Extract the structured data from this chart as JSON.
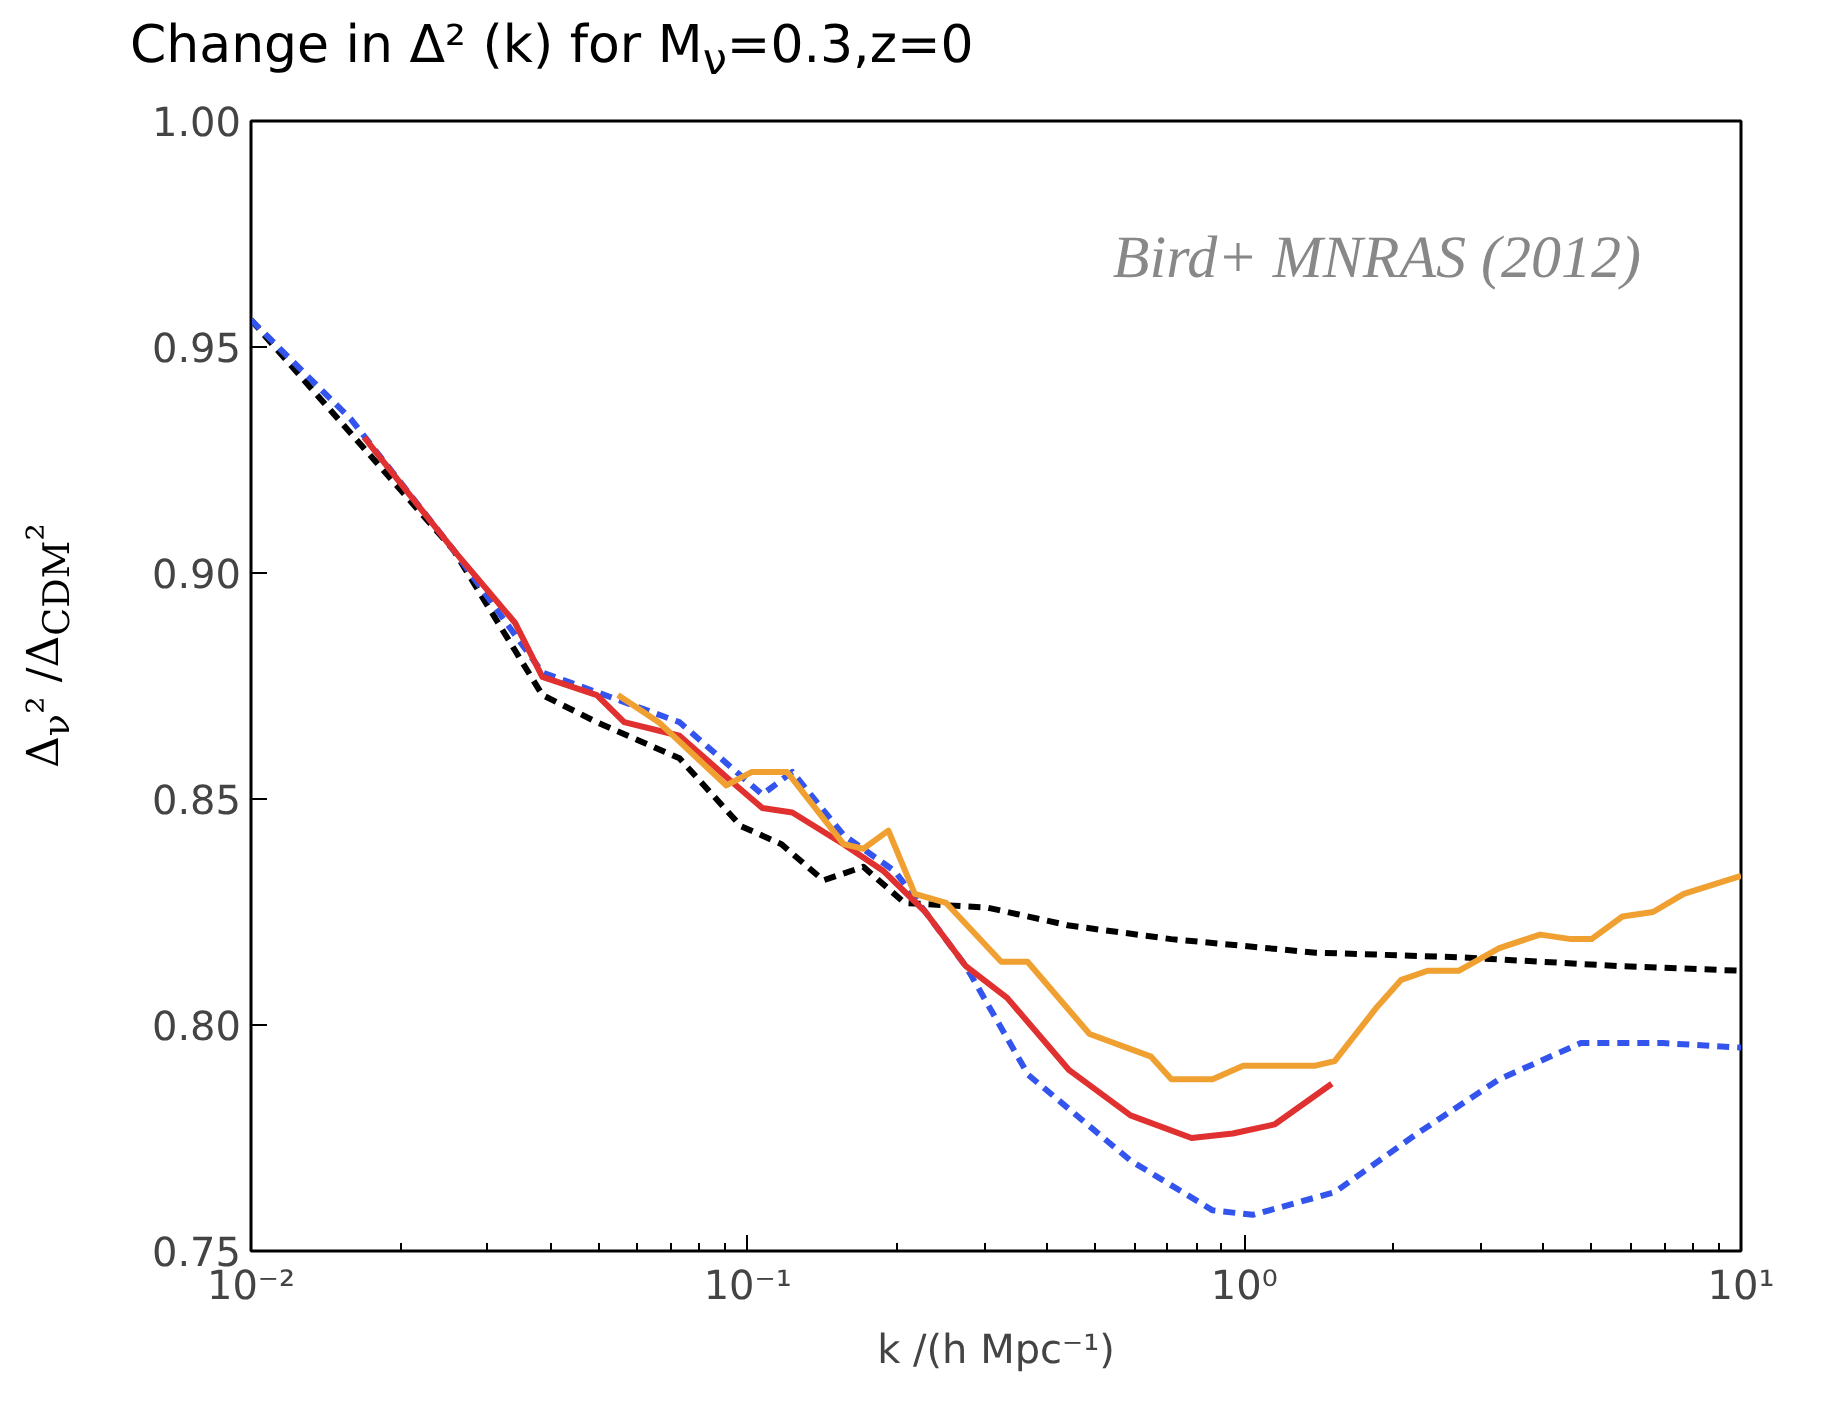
{
  "chart_data": {
    "type": "line",
    "title": "Change in Δ² (k) for M$_{ν}$=0.3,z=0",
    "xlabel": "k /(h Mpc⁻¹)",
    "ylabel": "Δ$_{ν}$² /Δ$_{CDM}$²",
    "log": "x",
    "grid": false,
    "xlim": [
      0.01,
      10
    ],
    "xticks": [
      {
        "value": 0.01,
        "label": "10⁻²"
      },
      {
        "value": 0.1,
        "label": "10⁻¹"
      },
      {
        "value": 1,
        "label": "10⁰"
      },
      {
        "value": 10,
        "label": "10¹"
      }
    ],
    "ylim": [
      0.75,
      1.0
    ],
    "yticks": [
      {
        "value": 0.75,
        "label": "0.75"
      },
      {
        "value": 0.8,
        "label": "0.80"
      },
      {
        "value": 0.85,
        "label": "0.85"
      },
      {
        "value": 0.9,
        "label": "0.90"
      },
      {
        "value": 0.95,
        "label": "0.95"
      },
      {
        "value": 1.0,
        "label": "1.00"
      }
    ],
    "annotations": [
      "Bird+ MNRAS (2012)"
    ],
    "series": [
      {
        "color": "#000000",
        "line_style": "dashed",
        "x": [
          0.01,
          0.0256,
          0.0386,
          0.0497,
          0.0729,
          0.0969,
          0.117,
          0.142,
          0.171,
          0.207,
          0.303,
          0.444,
          0.713,
          1.39,
          2.7,
          5.77,
          10
        ],
        "values": [
          0.956,
          0.905,
          0.873,
          0.867,
          0.859,
          0.844,
          0.84,
          0.832,
          0.835,
          0.827,
          0.826,
          0.822,
          0.819,
          0.816,
          0.815,
          0.813,
          0.812
        ]
      },
      {
        "color": "#3355ee",
        "line_style": "dashed",
        "x": [
          0.01,
          0.0159,
          0.0256,
          0.0386,
          0.0729,
          0.107,
          0.123,
          0.156,
          0.198,
          0.275,
          0.367,
          0.59,
          0.863,
          1.04,
          1.52,
          2.23,
          3.26,
          4.76,
          6.97,
          10
        ],
        "values": [
          0.956,
          0.934,
          0.905,
          0.878,
          0.867,
          0.851,
          0.856,
          0.842,
          0.834,
          0.813,
          0.789,
          0.77,
          0.759,
          0.758,
          0.763,
          0.776,
          0.788,
          0.796,
          0.796,
          0.795
        ]
      },
      {
        "color": "#e03030",
        "line_style": "solid",
        "x": [
          0.0169,
          0.0256,
          0.034,
          0.0386,
          0.0497,
          0.0564,
          0.0729,
          0.0925,
          0.107,
          0.123,
          0.156,
          0.188,
          0.228,
          0.275,
          0.333,
          0.444,
          0.59,
          0.783,
          0.948,
          1.15,
          1.5
        ],
        "values": [
          0.93,
          0.905,
          0.889,
          0.877,
          0.873,
          0.867,
          0.864,
          0.854,
          0.848,
          0.847,
          0.84,
          0.834,
          0.825,
          0.813,
          0.806,
          0.79,
          0.78,
          0.775,
          0.776,
          0.778,
          0.787
        ]
      },
      {
        "color": "#f0a030",
        "line_style": "solid",
        "x": [
          0.0548,
          0.0662,
          0.0906,
          0.102,
          0.12,
          0.156,
          0.171,
          0.192,
          0.217,
          0.251,
          0.324,
          0.366,
          0.488,
          0.649,
          0.713,
          0.863,
          0.995,
          1.39,
          1.52,
          1.85,
          2.07,
          2.34,
          2.7,
          3.26,
          3.94,
          4.55,
          5.0,
          5.77,
          6.65,
          7.67,
          10
        ],
        "values": [
          0.873,
          0.867,
          0.853,
          0.856,
          0.856,
          0.84,
          0.839,
          0.843,
          0.829,
          0.827,
          0.814,
          0.814,
          0.798,
          0.793,
          0.788,
          0.788,
          0.791,
          0.791,
          0.792,
          0.804,
          0.81,
          0.812,
          0.812,
          0.817,
          0.82,
          0.819,
          0.819,
          0.824,
          0.825,
          0.829,
          0.833
        ]
      }
    ]
  }
}
